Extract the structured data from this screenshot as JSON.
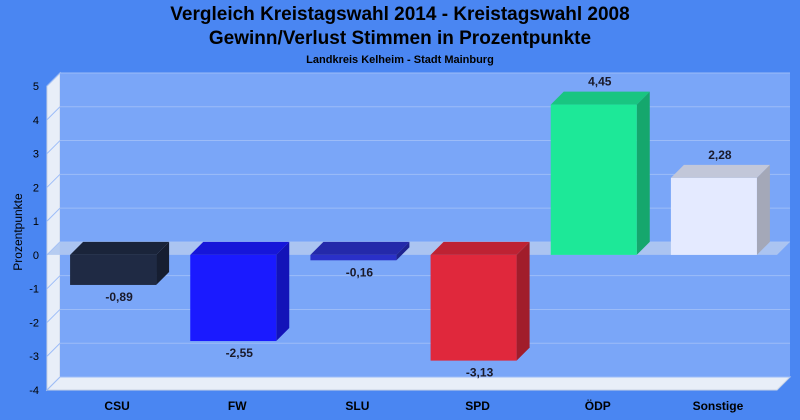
{
  "chart_data": {
    "type": "bar",
    "title": "Vergleich Kreistagswahl 2014 - Kreistagswahl 2008",
    "title_line2": "Gewinn/Verlust Stimmen in Prozentpunkte",
    "subtitle": "Landkreis Kelheim - Stadt Mainburg",
    "xlabel": "",
    "ylabel": "Prozentpunkte",
    "ylim": [
      -4,
      5
    ],
    "yticks": [
      5,
      4,
      3,
      2,
      1,
      0,
      -1,
      -2,
      -3,
      -4
    ],
    "grid": true,
    "legend": "none",
    "three_d": true,
    "categories": [
      "CSU",
      "FW",
      "SLU",
      "SPD",
      "ÖDP",
      "Sonstige"
    ],
    "values": [
      -0.89,
      -2.55,
      -0.16,
      -3.13,
      4.45,
      2.28
    ],
    "value_labels": [
      "-0,89",
      "-2,55",
      "-0,16",
      "-3,13",
      "4,45",
      "2,28"
    ],
    "colors": [
      "#1f2a44",
      "#1a1aff",
      "#2a30c8",
      "#e0283c",
      "#1de898",
      "#e4eaff"
    ]
  },
  "colors": {
    "background": "#4a86f2",
    "plot_area": "#7aa6f8",
    "grid": "#9cbcf8",
    "zero_plane": "#b0c8f0"
  }
}
